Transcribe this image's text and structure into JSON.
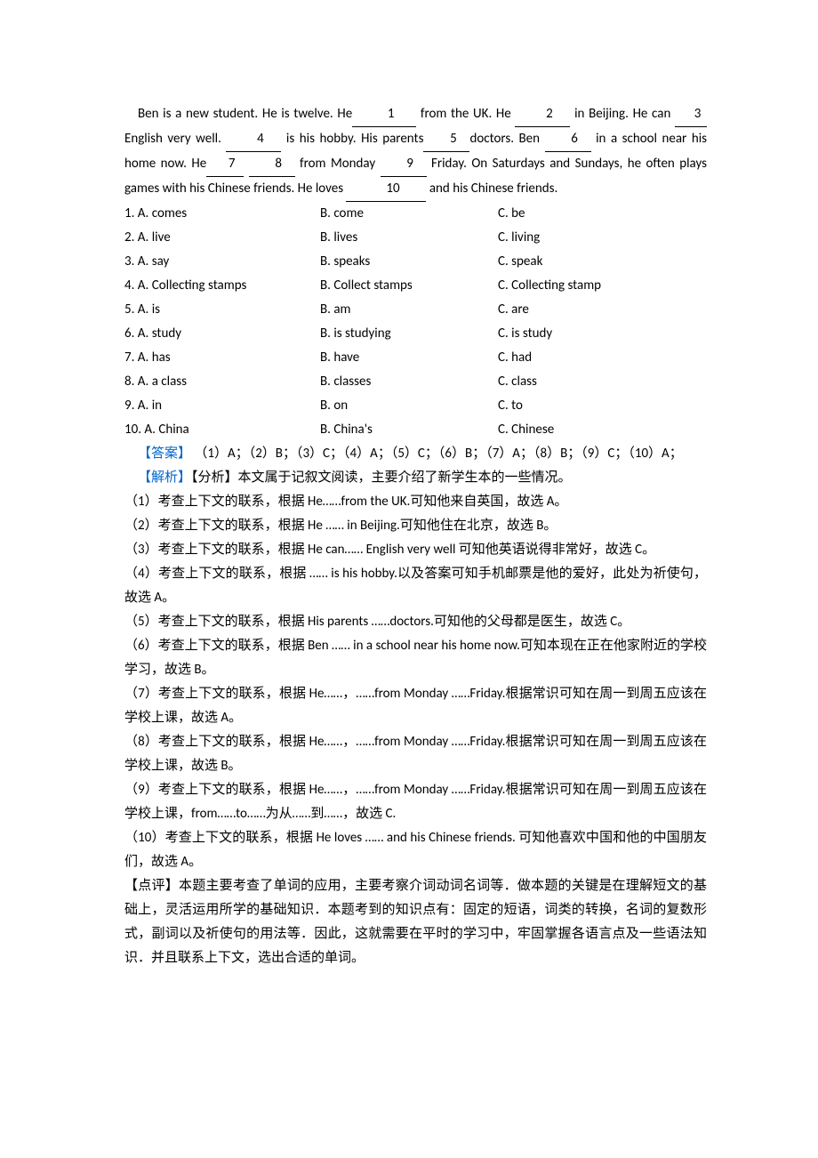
{
  "passage": {
    "s1a": "Ben is a new student. He is twelve. He",
    "blank1": "1",
    "s1b": " from the UK. He ",
    "blank2": "2",
    "s1c": "  in Beijing. He can ",
    "blank3": "3",
    "s2a": " English very well. ",
    "blank4": "4",
    "s2b": " is his hobby. His parents",
    "blank5": "5",
    "s2c": "doctors. Ben ",
    "blank6": "6",
    "s2d": " in a school near his home now. He",
    "blank7": "7",
    "blank8": "8",
    "s3a": " from Monday ",
    "blank9": "9",
    "s3b": " Friday. On Saturdays and Sundays, he often plays games with his Chinese friends. He loves ",
    "blank10": "10",
    "s3c": " and his Chinese friends."
  },
  "options": [
    {
      "n": "1",
      "a": "A. comes",
      "b": "B. come",
      "c": "C. be"
    },
    {
      "n": "2",
      "a": "A. live",
      "b": "B. lives",
      "c": "C. living"
    },
    {
      "n": "3",
      "a": "A. say",
      "b": "B. speaks",
      "c": "C. speak"
    },
    {
      "n": "4",
      "a": "A. Collecting stamps",
      "b": "B. Collect stamps",
      "c": "C. Collecting stamp"
    },
    {
      "n": "5",
      "a": "A. is",
      "b": "B. am",
      "c": "C. are"
    },
    {
      "n": "6",
      "a": "A. study",
      "b": "B. is studying",
      "c": "C. is study"
    },
    {
      "n": "7",
      "a": "A. has",
      "b": "B. have",
      "c": "C. had"
    },
    {
      "n": "8",
      "a": "A. a class",
      "b": "B. classes",
      "c": "C. class"
    },
    {
      "n": "9",
      "a": "A. in",
      "b": "B. on",
      "c": "C. to"
    },
    {
      "n": "10",
      "a": "A. China",
      "b": "B. China's",
      "c": "C. Chinese"
    }
  ],
  "answer": {
    "label": "【答案】",
    "text": " （1）A；（2）B；（3）C；（4）A；（5）C；（6）B；（7）A；（8）B；（9）C；（10）A；"
  },
  "analysis": {
    "label": "【解析】",
    "intro": "【分析】本文属于记叙文阅读，主要介绍了新学生本的一些情况。",
    "items": [
      "（1）考查上下文的联系，根据 He……from the UK.可知他来自英国，故选 A。",
      "（2）考查上下文的联系，根据 He ……  in Beijing.可知他住在北京，故选 B。",
      "（3）考查上下文的联系，根据 He can…… English very well 可知他英语说得非常好，故选 C。",
      "（4）考查上下文的联系，根据 …… is his hobby.以及答案可知手机邮票是他的爱好，此处为祈使句，故选 A。",
      "（5）考查上下文的联系，根据 His parents ……doctors.可知他的父母都是医生，故选 C。",
      "（6）考查上下文的联系，根据 Ben  ……   in a school near his home now.可知本现在正在他家附近的学校学习，故选 B。",
      "（7）考查上下文的联系，根据 He……，……from Monday ……Friday.根据常识可知在周一到周五应该在学校上课，故选 A。",
      "（8）考查上下文的联系，根据 He……，……from Monday ……Friday.根据常识可知在周一到周五应该在学校上课，故选 B。",
      "（9）考查上下文的联系，根据 He……，……from Monday ……Friday.根据常识可知在周一到周五应该在学校上课，from……to……为从……到……，故选 C.",
      "（10）考查上下文的联系，根据 He loves  ……  and his Chinese friends. 可知他喜欢中国和他的中国朋友们，故选 A。"
    ],
    "comment": "【点评】本题主要考查了单词的应用，主要考察介词动词名词等．做本题的关键是在理解短文的基础上，灵活运用所学的基础知识．本题考到的知识点有：固定的短语，词类的转换，名词的复数形式，副词以及祈使句的用法等．因此，这就需要在平时的学习中，牢固掌握各语言点及一些语法知识．并且联系上下文，选出合适的单词。"
  }
}
